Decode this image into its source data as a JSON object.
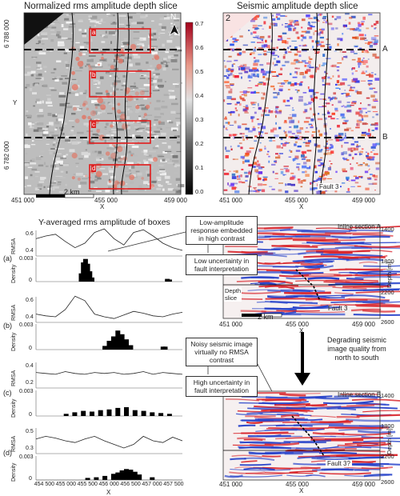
{
  "panel1": {
    "title": "Normalized rms amplitude depth slice",
    "number": "1",
    "north": "N",
    "box_labels": [
      "a",
      "b",
      "c",
      "d"
    ],
    "y_ticks": [
      "6 788 000",
      "6 782 000"
    ],
    "y_label": "Y",
    "x_ticks": [
      "451 000",
      "455 000",
      "459 000"
    ],
    "x_label": "X",
    "scale_label": "2 km",
    "colorbar_ticks": [
      "0.7",
      "0.6",
      "0.5",
      "0.4",
      "0.3",
      "0.2",
      "0.1",
      "0.0"
    ]
  },
  "panel2": {
    "title": "Seismic amplitude depth slice",
    "number": "2",
    "marker_a": "A",
    "marker_b": "B",
    "fault_label": "Fault 3",
    "x_ticks": [
      "451 000",
      "455 000",
      "459 000"
    ],
    "x_label": "X"
  },
  "boxes_panel": {
    "title": "Y-averaged rms amplitude of boxes",
    "row_labels": [
      "(a)",
      "(b)",
      "(c)",
      "(d)"
    ],
    "rmsa_label": "RMSA",
    "density_label": "Density",
    "rmsa_ticks": [
      [
        "0.6",
        "0.4"
      ],
      [
        "0.6",
        "0.4"
      ],
      [
        "0.4",
        "0.2"
      ],
      [
        "0.5",
        "0.3"
      ]
    ],
    "density_ticks": [
      "0.003",
      "0"
    ],
    "x_ticks": [
      "454 500",
      "455 000",
      "455 500",
      "456 000",
      "456 500",
      "457 000",
      "457 500"
    ],
    "x_label": "X"
  },
  "annotations": {
    "low_amp": "Low-amplitude response embedded in high contrast",
    "low_unc": "Low uncertainty in fault interpretation",
    "noisy": "Noisy seismic image virtually no RMSA contrast",
    "high_unc": "High uncertainty in fault interpretation",
    "degrading": "Degrading seismic image quality from north to south"
  },
  "inline_a": {
    "title": "Inline section A",
    "depth_ticks": [
      "1400",
      "1800",
      "2200",
      "2600"
    ],
    "depth_label": "Depth [m]",
    "depth_slice": "Depth slice",
    "fault": "Fault 3",
    "x_ticks": [
      "451 000",
      "455 000",
      "459 000"
    ],
    "x_label": "X",
    "scale_label": "2 km"
  },
  "inline_b": {
    "title": "Inline section B",
    "depth_ticks": [
      "1400",
      "1800",
      "2200",
      "2600"
    ],
    "depth_label": "Depth [m]",
    "fault": "Fault 3?",
    "x_ticks": [
      "451 000",
      "455 000",
      "459 000"
    ],
    "x_label": "X"
  },
  "chart_data": [
    {
      "type": "area",
      "title": "",
      "xlabel": "X",
      "ylabel": "RMSA",
      "series": [
        {
          "values": [
            0.55,
            0.58,
            0.6,
            0.52,
            0.45,
            0.5,
            0.62,
            0.66,
            0.55,
            0.48,
            0.62,
            0.65,
            0.58,
            0.5,
            0.45,
            0.42
          ]
        }
      ],
      "row": "(a)"
    },
    {
      "type": "bar",
      "xlabel": "X",
      "ylabel": "Density",
      "x": [
        455350,
        455400,
        455450,
        455500,
        455550,
        455600,
        457350,
        457400
      ],
      "values": [
        0.0012,
        0.0028,
        0.0033,
        0.0026,
        0.0015,
        0.0006,
        0.0004,
        0.0003
      ],
      "row": "(a)"
    },
    {
      "type": "line",
      "xlabel": "X",
      "ylabel": "RMSA",
      "series": [
        {
          "values": [
            0.45,
            0.43,
            0.42,
            0.5,
            0.65,
            0.6,
            0.45,
            0.42,
            0.4,
            0.44,
            0.48,
            0.46,
            0.43,
            0.42,
            0.45,
            0.47
          ]
        }
      ],
      "row": "(b)"
    },
    {
      "type": "bar",
      "xlabel": "X",
      "ylabel": "Density",
      "x": [
        455900,
        456000,
        456100,
        456200,
        456300,
        456400,
        456500,
        457250,
        457300
      ],
      "values": [
        0.0005,
        0.0012,
        0.0018,
        0.0026,
        0.0021,
        0.0014,
        0.0006,
        0.0004,
        0.0004
      ],
      "row": "(b)"
    },
    {
      "type": "line",
      "xlabel": "X",
      "ylabel": "RMSA",
      "series": [
        {
          "values": [
            0.33,
            0.32,
            0.31,
            0.34,
            0.32,
            0.31,
            0.33,
            0.32,
            0.33,
            0.31,
            0.32,
            0.34,
            0.31,
            0.33,
            0.32,
            0.31
          ]
        }
      ],
      "row": "(c)"
    },
    {
      "type": "bar",
      "xlabel": "X",
      "ylabel": "Density",
      "x": [
        455000,
        455200,
        455400,
        455600,
        455800,
        456000,
        456200,
        456400,
        456600,
        456800,
        457000,
        457200,
        457400
      ],
      "values": [
        0.0003,
        0.0005,
        0.0007,
        0.0006,
        0.0008,
        0.0009,
        0.0011,
        0.0012,
        0.0008,
        0.0007,
        0.0005,
        0.0004,
        0.0003
      ],
      "row": "(c)"
    },
    {
      "type": "line",
      "xlabel": "X",
      "ylabel": "RMSA",
      "series": [
        {
          "values": [
            0.42,
            0.45,
            0.43,
            0.4,
            0.38,
            0.42,
            0.45,
            0.4,
            0.36,
            0.32,
            0.36,
            0.45,
            0.4,
            0.38,
            0.44,
            0.4
          ]
        }
      ],
      "row": "(d)"
    },
    {
      "type": "bar",
      "xlabel": "X",
      "ylabel": "Density",
      "x": [
        455500,
        455700,
        455900,
        456100,
        456200,
        456300,
        456400,
        456500,
        456600,
        456700,
        457000
      ],
      "values": [
        0.0003,
        0.0004,
        0.0006,
        0.0009,
        0.0011,
        0.0014,
        0.0016,
        0.0015,
        0.0012,
        0.0008,
        0.0004
      ],
      "row": "(d)"
    }
  ]
}
